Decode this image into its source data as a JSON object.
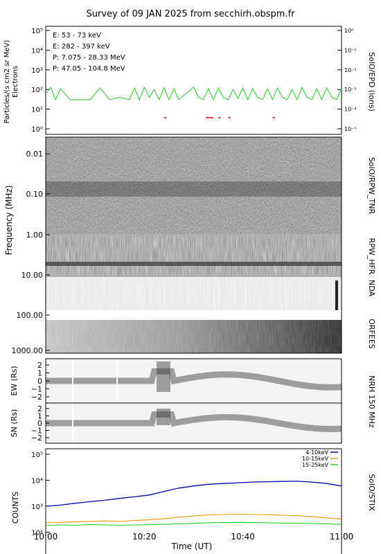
{
  "title": "Survey of 09 JAN 2025 from secchirh.obspm.fr",
  "xlabel": "Time (UT)",
  "time_ticks": [
    "10:00",
    "10:20",
    "10:40",
    "11:00"
  ],
  "colors": {
    "e1": "#22cc22",
    "e2": "#dd0000",
    "p1": "#000000",
    "p2": "#0000aa",
    "stix1": "#0000aa",
    "stix2": "#ee9900",
    "stix3": "#22cc22"
  },
  "epd": {
    "ylabel1": "Particles/(s cm2 sr MeV)",
    "ylabel2": "Electrons",
    "right_label": "SolO/EPD (ions)",
    "left_ticks": [
      "10⁰",
      "10¹",
      "10²",
      "10³",
      "10⁴",
      "10⁵"
    ],
    "right_ticks": [
      "10⁻⁵",
      "10⁻⁴",
      "10⁻³",
      "10⁻²",
      "10⁻¹",
      "10⁰"
    ],
    "legend": [
      "E: 53 - 73 keV",
      "E: 282 - 397 keV",
      "P: 7.075 - 28.33 MeV",
      "P: 47.05 - 104.8 MeV"
    ]
  },
  "radio": {
    "ylabel": "Frequency (MHz)",
    "ticks": [
      "0.01",
      "0.10",
      "1.00",
      "10.00",
      "100.00",
      "1000.00"
    ],
    "labels": [
      "SolO/RPW_TNR",
      "RPW_HFR",
      "NDA",
      "ORFEES"
    ]
  },
  "nrh": {
    "ew_label": "EW (Rs)",
    "sn_label": "SN (Rs)",
    "right_label": "NRH 150 MHz",
    "ticks": [
      "2",
      "1",
      "0",
      "−1",
      "−2"
    ]
  },
  "stix": {
    "ylabel": "COUNTS",
    "right_label": "SolO/STIX",
    "ticks": [
      "10¹",
      "10²",
      "10³",
      "10⁴",
      "10⁵"
    ],
    "legend": [
      "4-10keV",
      "10-15keV",
      "15-25keV"
    ]
  },
  "chart_data": [
    {
      "type": "line",
      "title": "Survey of 09 JAN 2025 from secchirh.obspm.fr",
      "xlabel": "Time (UT)",
      "ylabel": "Particles/(s cm2 sr MeV)",
      "log_y": true,
      "ylim": [
        1,
        100000
      ],
      "x_minutes": [
        0,
        1,
        2,
        3,
        5,
        7,
        9,
        11,
        13,
        15,
        17,
        18,
        19,
        20,
        21,
        22,
        23,
        24,
        25,
        26,
        27,
        28,
        29,
        30,
        31,
        32,
        33,
        34,
        35,
        36,
        37,
        38,
        39,
        40,
        41,
        42,
        43,
        44,
        45,
        46,
        47,
        48,
        49,
        50,
        51,
        52,
        53,
        54,
        55,
        56,
        57,
        58,
        59,
        60
      ],
      "series": [
        {
          "name": "E: 53 - 73 keV",
          "values": [
            60,
            130,
            30,
            110,
            30,
            30,
            30,
            120,
            30,
            40,
            30,
            120,
            30,
            130,
            40,
            100,
            30,
            120,
            30,
            110,
            30,
            null,
            null,
            130,
            40,
            30,
            110,
            30,
            120,
            40,
            30,
            100,
            35,
            120,
            30,
            110,
            40,
            30,
            110,
            30,
            120,
            40,
            30,
            100,
            30,
            130,
            40,
            30,
            110,
            30,
            120,
            40,
            30,
            110
          ]
        }
      ]
    },
    {
      "type": "line",
      "xlabel": "Time (UT)",
      "ylabel": "COUNTS",
      "log_y": true,
      "ylim": [
        10,
        100000
      ],
      "x_minutes": [
        0,
        3,
        6,
        9,
        12,
        15,
        18,
        21,
        24,
        27,
        30,
        33,
        36,
        39,
        42,
        45,
        48,
        51,
        54,
        57,
        60
      ],
      "series": [
        {
          "name": "4-10keV",
          "values": [
            1000,
            1100,
            1300,
            1500,
            1700,
            2000,
            2300,
            2700,
            3700,
            5000,
            6000,
            7000,
            7500,
            8000,
            8500,
            8800,
            9000,
            9200,
            8500,
            7500,
            6000
          ]
        },
        {
          "name": "10-15keV",
          "values": [
            230,
            240,
            250,
            260,
            270,
            260,
            280,
            300,
            330,
            380,
            420,
            460,
            480,
            500,
            480,
            470,
            450,
            430,
            400,
            350,
            320
          ]
        },
        {
          "name": "15-25keV",
          "values": [
            180,
            190,
            185,
            195,
            190,
            185,
            190,
            195,
            200,
            210,
            220,
            230,
            235,
            240,
            235,
            230,
            225,
            220,
            215,
            210,
            200
          ]
        }
      ]
    }
  ]
}
